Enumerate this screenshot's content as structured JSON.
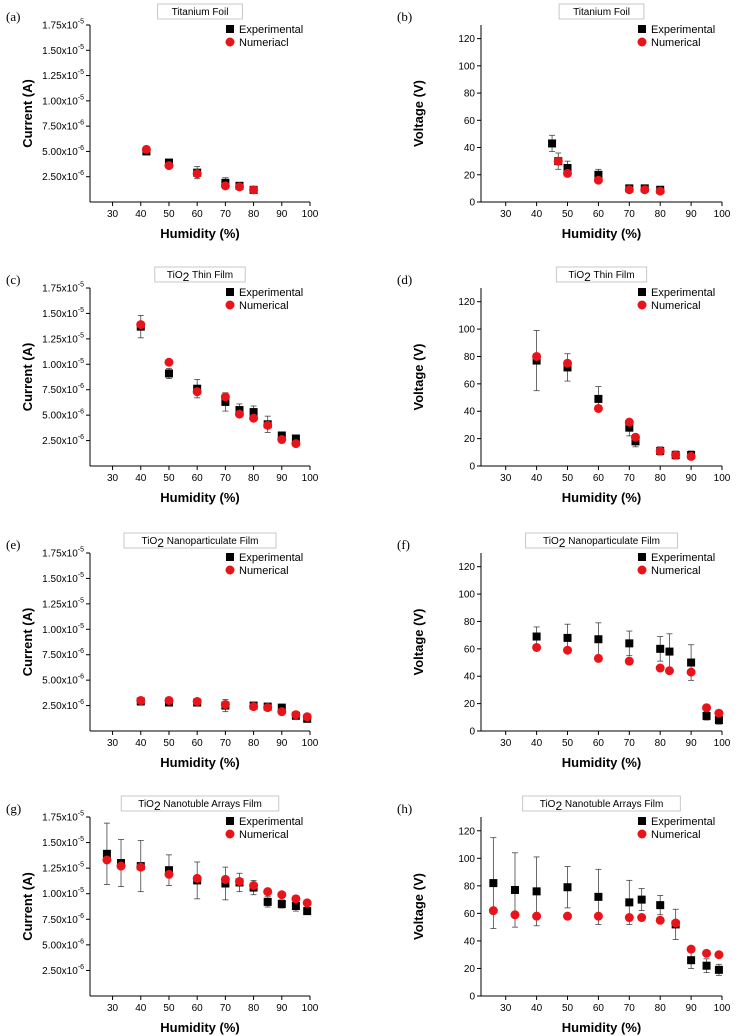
{
  "figure": {
    "colors": {
      "experimental": "#000000",
      "numerical": "#e8141a",
      "error_bar": "#444444"
    }
  },
  "chart_data": [
    {
      "panel": "(a)",
      "title": "Titanium Foil",
      "type": "scatter",
      "xlabel": "Humidity (%)",
      "ylabel": "Current  (A)",
      "xlim": [
        22,
        100
      ],
      "ylim": [
        0,
        1.75e-05
      ],
      "xticks": [
        30,
        40,
        50,
        60,
        70,
        80,
        90,
        100
      ],
      "yticks": [
        2.5e-06,
        5e-06,
        7.5e-06,
        1e-05,
        1.25e-05,
        1.5e-05,
        1.75e-05
      ],
      "ytick_labels": [
        "2.50x10-6",
        "5.00x10-6",
        "7.50x10-6",
        "1.00x10-5",
        "1.25x10-5",
        "1.50x10-5",
        "1.75x10-5"
      ],
      "series": [
        {
          "name": "Experimental",
          "marker": "square",
          "x": [
            42,
            50,
            60,
            70,
            75,
            80
          ],
          "y": [
            5e-06,
            3.9e-06,
            2.9e-06,
            1.9e-06,
            1.6e-06,
            1.2e-06
          ],
          "err": [
            3e-07,
            2e-07,
            6e-07,
            5e-07,
            3e-07,
            3e-07
          ]
        },
        {
          "name": "Numeriacl",
          "marker": "circle",
          "x": [
            42,
            50,
            60,
            70,
            75,
            80
          ],
          "y": [
            5.2e-06,
            3.6e-06,
            2.8e-06,
            1.6e-06,
            1.5e-06,
            1.2e-06
          ]
        }
      ]
    },
    {
      "panel": "(b)",
      "title": "Titanium Foil",
      "type": "scatter",
      "xlabel": "Humidity (%)",
      "ylabel": "Voltage (V)",
      "xlim": [
        22,
        100
      ],
      "ylim": [
        0,
        130
      ],
      "xticks": [
        30,
        40,
        50,
        60,
        70,
        80,
        90,
        100
      ],
      "yticks": [
        0,
        20,
        40,
        60,
        80,
        100,
        120
      ],
      "ytick_labels": [
        "0",
        "20",
        "40",
        "60",
        "80",
        "100",
        "120"
      ],
      "series": [
        {
          "name": "Experimental",
          "marker": "square",
          "x": [
            45,
            47,
            50,
            60,
            70,
            75,
            80
          ],
          "y": [
            43,
            30,
            25,
            20,
            10,
            10,
            9
          ],
          "err": [
            6,
            6,
            5,
            4,
            2,
            2,
            2
          ]
        },
        {
          "name": "Numerical",
          "marker": "circle",
          "x": [
            47,
            50,
            60,
            70,
            75,
            80
          ],
          "y": [
            30,
            21,
            16,
            9,
            9,
            8
          ]
        }
      ]
    },
    {
      "panel": "(c)",
      "title": "TiO2 Thin Film",
      "type": "scatter",
      "xlabel": "Humidity (%)",
      "ylabel": "Current  (A)",
      "xlim": [
        22,
        100
      ],
      "ylim": [
        0,
        1.75e-05
      ],
      "xticks": [
        30,
        40,
        50,
        60,
        70,
        80,
        90,
        100
      ],
      "yticks": [
        2.5e-06,
        5e-06,
        7.5e-06,
        1e-05,
        1.25e-05,
        1.5e-05,
        1.75e-05
      ],
      "ytick_labels": [
        "2.50x10-6",
        "5.00x10-6",
        "7.50x10-6",
        "1.00x10-5",
        "1.25x10-5",
        "1.50x10-5",
        "1.75x10-5"
      ],
      "series": [
        {
          "name": "Experimental",
          "marker": "square",
          "x": [
            40,
            50,
            60,
            70,
            75,
            80,
            85,
            90,
            95
          ],
          "y": [
            1.37e-05,
            9.1e-06,
            7.6e-06,
            6.3e-06,
            5.5e-06,
            5.3e-06,
            4.1e-06,
            3e-06,
            2.7e-06
          ],
          "err": [
            1.1e-06,
            5e-07,
            9e-07,
            9e-07,
            6e-07,
            6e-07,
            8e-07,
            3e-07,
            3e-07
          ]
        },
        {
          "name": "Numerical",
          "marker": "circle",
          "x": [
            40,
            50,
            60,
            70,
            75,
            80,
            85,
            90,
            95
          ],
          "y": [
            1.39e-05,
            1.02e-05,
            7.3e-06,
            6.8e-06,
            5.1e-06,
            4.7e-06,
            4e-06,
            2.6e-06,
            2.2e-06
          ]
        }
      ]
    },
    {
      "panel": "(d)",
      "title": "TiO2 Thin Film",
      "type": "scatter",
      "xlabel": "Humidity (%)",
      "ylabel": "Voltage (V)",
      "xlim": [
        22,
        100
      ],
      "ylim": [
        0,
        130
      ],
      "xticks": [
        30,
        40,
        50,
        60,
        70,
        80,
        90,
        100
      ],
      "yticks": [
        0,
        20,
        40,
        60,
        80,
        100,
        120
      ],
      "ytick_labels": [
        "0",
        "20",
        "40",
        "60",
        "80",
        "100",
        "120"
      ],
      "series": [
        {
          "name": "Experimental",
          "marker": "square",
          "x": [
            40,
            50,
            60,
            70,
            72,
            80,
            85,
            90
          ],
          "y": [
            77,
            72,
            49,
            28,
            18,
            11,
            8,
            8
          ],
          "err": [
            22,
            10,
            9,
            6,
            4,
            3,
            3,
            3
          ]
        },
        {
          "name": "Numerical",
          "marker": "circle",
          "x": [
            40,
            50,
            60,
            70,
            72,
            80,
            85,
            90
          ],
          "y": [
            80,
            75,
            42,
            32,
            21,
            11,
            8,
            7
          ]
        }
      ]
    },
    {
      "panel": "(e)",
      "title": "TiO2 Nanoparticulate Film",
      "type": "scatter",
      "xlabel": "Humidity (%)",
      "ylabel": "Current  (A)",
      "xlim": [
        22,
        100
      ],
      "ylim": [
        0,
        1.75e-05
      ],
      "xticks": [
        30,
        40,
        50,
        60,
        70,
        80,
        90,
        100
      ],
      "yticks": [
        2.5e-06,
        5e-06,
        7.5e-06,
        1e-05,
        1.25e-05,
        1.5e-05,
        1.75e-05
      ],
      "ytick_labels": [
        "2.50x10-6",
        "5.00x10-6",
        "7.50x10-6",
        "1.00x10-5",
        "1.25x10-5",
        "1.50x10-5",
        "1.75x10-5"
      ],
      "series": [
        {
          "name": "Experimental",
          "marker": "square",
          "x": [
            40,
            50,
            60,
            70,
            80,
            85,
            90,
            95,
            99
          ],
          "y": [
            2.9e-06,
            2.8e-06,
            2.8e-06,
            2.5e-06,
            2.5e-06,
            2.4e-06,
            2.3e-06,
            1.5e-06,
            1.2e-06
          ],
          "err": [
            3e-07,
            3e-07,
            3e-07,
            6e-07,
            3e-07,
            3e-07,
            3e-07,
            3e-07,
            3e-07
          ]
        },
        {
          "name": "Numerical",
          "marker": "circle",
          "x": [
            40,
            50,
            60,
            70,
            80,
            85,
            90,
            95,
            99
          ],
          "y": [
            3e-06,
            3e-06,
            2.9e-06,
            2.6e-06,
            2.4e-06,
            2.3e-06,
            1.9e-06,
            1.6e-06,
            1.4e-06
          ]
        }
      ]
    },
    {
      "panel": "(f)",
      "title": "TiO2 Nanoparticulate Film",
      "type": "scatter",
      "xlabel": "Humidity (%)",
      "ylabel": "Voltage (V)",
      "xlim": [
        22,
        100
      ],
      "ylim": [
        0,
        130
      ],
      "xticks": [
        30,
        40,
        50,
        60,
        70,
        80,
        90,
        100
      ],
      "yticks": [
        0,
        20,
        40,
        60,
        80,
        100,
        120
      ],
      "ytick_labels": [
        "0",
        "20",
        "40",
        "60",
        "80",
        "100",
        "120"
      ],
      "series": [
        {
          "name": "Experimental",
          "marker": "square",
          "x": [
            40,
            50,
            60,
            70,
            80,
            83,
            90,
            95,
            99
          ],
          "y": [
            69,
            68,
            67,
            64,
            60,
            58,
            50,
            11,
            8
          ],
          "err": [
            7,
            10,
            12,
            9,
            9,
            13,
            13,
            3,
            3
          ]
        },
        {
          "name": "Numerical",
          "marker": "circle",
          "x": [
            40,
            50,
            60,
            70,
            80,
            83,
            90,
            95,
            99
          ],
          "y": [
            61,
            59,
            53,
            51,
            46,
            44,
            43,
            17,
            13
          ]
        }
      ]
    },
    {
      "panel": "(g)",
      "title": "TiO2 Nanotuble Arrays Film",
      "type": "scatter",
      "xlabel": "Humidity (%)",
      "ylabel": "Current  (A)",
      "xlim": [
        22,
        100
      ],
      "ylim": [
        0,
        1.75e-05
      ],
      "xticks": [
        30,
        40,
        50,
        60,
        70,
        80,
        90,
        100
      ],
      "yticks": [
        2.5e-06,
        5e-06,
        7.5e-06,
        1e-05,
        1.25e-05,
        1.5e-05,
        1.75e-05
      ],
      "ytick_labels": [
        "2.50x10-6",
        "5.00x10-6",
        "7.50x10-6",
        "1.00x10-5",
        "1.25x10-5",
        "1.50x10-5",
        "1.75x10-5"
      ],
      "series": [
        {
          "name": "Experimental",
          "marker": "square",
          "x": [
            28,
            33,
            40,
            50,
            60,
            70,
            75,
            80,
            85,
            90,
            95,
            99
          ],
          "y": [
            1.39e-05,
            1.3e-05,
            1.27e-05,
            1.23e-05,
            1.13e-05,
            1.1e-05,
            1.11e-05,
            1.06e-05,
            9.2e-06,
            9e-06,
            8.8e-06,
            8.3e-06
          ],
          "err": [
            3e-06,
            2.3e-06,
            2.5e-06,
            1.5e-06,
            1.8e-06,
            1.6e-06,
            9e-07,
            7e-07,
            5e-07,
            4e-07,
            5e-07,
            3e-07
          ]
        },
        {
          "name": "Numerical",
          "marker": "circle",
          "x": [
            28,
            33,
            40,
            50,
            60,
            70,
            75,
            80,
            85,
            90,
            95,
            99
          ],
          "y": [
            1.33e-05,
            1.27e-05,
            1.26e-05,
            1.19e-05,
            1.15e-05,
            1.14e-05,
            1.12e-05,
            1.08e-05,
            1.02e-05,
            9.9e-06,
            9.5e-06,
            9.1e-06
          ]
        }
      ]
    },
    {
      "panel": "(h)",
      "title": "TiO2 Nanotuble Arrays Film",
      "type": "scatter",
      "xlabel": "Humidity (%)",
      "ylabel": "Voltage (V)",
      "xlim": [
        22,
        100
      ],
      "ylim": [
        0,
        130
      ],
      "xticks": [
        30,
        40,
        50,
        60,
        70,
        80,
        90,
        100
      ],
      "yticks": [
        0,
        20,
        40,
        60,
        80,
        100,
        120
      ],
      "ytick_labels": [
        "0",
        "20",
        "40",
        "60",
        "80",
        "100",
        "120"
      ],
      "series": [
        {
          "name": "Experimental",
          "marker": "square",
          "x": [
            26,
            33,
            40,
            50,
            60,
            70,
            74,
            80,
            85,
            90,
            95,
            99
          ],
          "y": [
            82,
            77,
            76,
            79,
            72,
            68,
            70,
            66,
            52,
            26,
            22,
            19
          ],
          "err": [
            33,
            27,
            25,
            15,
            20,
            16,
            8,
            7,
            11,
            6,
            5,
            4
          ]
        },
        {
          "name": "Numerical",
          "marker": "circle",
          "x": [
            26,
            33,
            40,
            50,
            60,
            70,
            74,
            80,
            85,
            90,
            95,
            99
          ],
          "y": [
            62,
            59,
            58,
            58,
            58,
            57,
            57,
            55,
            53,
            34,
            31,
            30
          ]
        }
      ]
    }
  ]
}
